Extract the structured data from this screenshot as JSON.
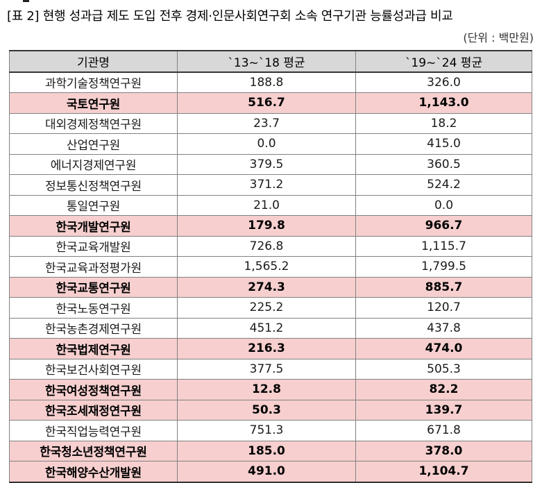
{
  "caption": "[표 2] 현행 성과급 제도 도입 전후 경제·인문사회연구회 소속 연구기관 능률성과급 비교",
  "unit": "(단위 : 백만원)",
  "highlight_color": "#f7cfcf",
  "header_color": "#d8d8d8",
  "table": {
    "headers": [
      "기관명",
      "`13~`18 평균",
      "`19~`24 평균"
    ],
    "rows": [
      {
        "name": "과학기술정책연구원",
        "avg1": "188.8",
        "avg2": "326.0",
        "highlight": false
      },
      {
        "name": "국토연구원",
        "avg1": "516.7",
        "avg2": "1,143.0",
        "highlight": true
      },
      {
        "name": "대외경제정책연구원",
        "avg1": "23.7",
        "avg2": "18.2",
        "highlight": false
      },
      {
        "name": "산업연구원",
        "avg1": "0.0",
        "avg2": "415.0",
        "highlight": false
      },
      {
        "name": "에너지경제연구원",
        "avg1": "379.5",
        "avg2": "360.5",
        "highlight": false
      },
      {
        "name": "정보통신정책연구원",
        "avg1": "371.2",
        "avg2": "524.2",
        "highlight": false
      },
      {
        "name": "통일연구원",
        "avg1": "21.0",
        "avg2": "0.0",
        "highlight": false
      },
      {
        "name": "한국개발연구원",
        "avg1": "179.8",
        "avg2": "966.7",
        "highlight": true
      },
      {
        "name": "한국교육개발원",
        "avg1": "726.8",
        "avg2": "1,115.7",
        "highlight": false
      },
      {
        "name": "한국교육과정평가원",
        "avg1": "1,565.2",
        "avg2": "1,799.5",
        "highlight": false
      },
      {
        "name": "한국교통연구원",
        "avg1": "274.3",
        "avg2": "885.7",
        "highlight": true
      },
      {
        "name": "한국노동연구원",
        "avg1": "225.2",
        "avg2": "120.7",
        "highlight": false
      },
      {
        "name": "한국농촌경제연구원",
        "avg1": "451.2",
        "avg2": "437.8",
        "highlight": false
      },
      {
        "name": "한국법제연구원",
        "avg1": "216.3",
        "avg2": "474.0",
        "highlight": true
      },
      {
        "name": "한국보건사회연구원",
        "avg1": "377.5",
        "avg2": "505.3",
        "highlight": false
      },
      {
        "name": "한국여성정책연구원",
        "avg1": "12.8",
        "avg2": "82.2",
        "highlight": true
      },
      {
        "name": "한국조세재정연구원",
        "avg1": "50.3",
        "avg2": "139.7",
        "highlight": true
      },
      {
        "name": "한국직업능력연구원",
        "avg1": "751.3",
        "avg2": "671.8",
        "highlight": false
      },
      {
        "name": "한국청소년정책연구원",
        "avg1": "185.0",
        "avg2": "378.0",
        "highlight": true
      },
      {
        "name": "한국해양수산개발원",
        "avg1": "491.0",
        "avg2": "1,104.7",
        "highlight": true
      }
    ]
  }
}
